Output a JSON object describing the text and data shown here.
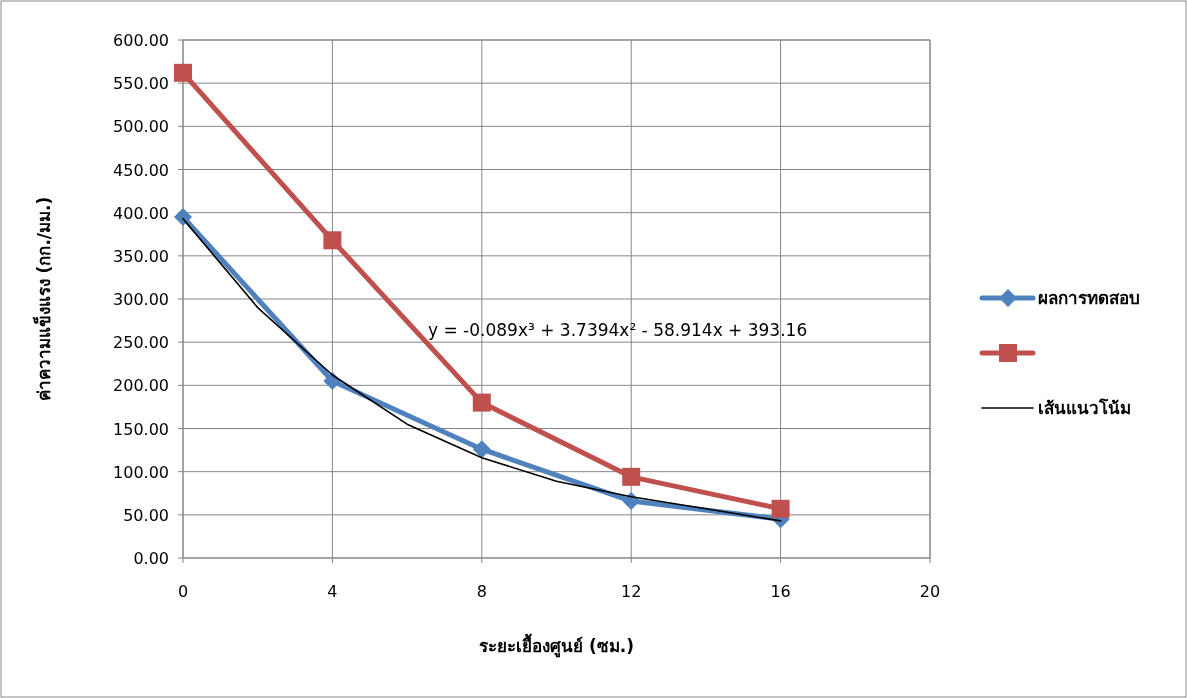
{
  "chart_data": {
    "type": "line",
    "xlabel": "ระยะเยื้องศูนย์ (ซม.)",
    "ylabel": "ค่าความแข็งแรง (กก./มม.)",
    "x": [
      0,
      4,
      8,
      12,
      16
    ],
    "series": [
      {
        "name": "ผลการทดสอบ",
        "color": "#4f81bd",
        "marker": "diamond",
        "values": [
          395,
          205,
          126,
          66,
          45
        ]
      },
      {
        "color": "#c0504d",
        "marker": "square",
        "values": [
          562,
          368,
          180,
          94,
          57
        ]
      },
      {
        "name": "เส้นแนวโน้ม",
        "color": "#000000",
        "marker": "none",
        "x": [
          0,
          2,
          4,
          6,
          8,
          10,
          12,
          14,
          16
        ],
        "values": [
          393,
          290,
          212,
          155,
          116,
          89,
          71,
          57,
          43
        ]
      }
    ],
    "xlim": [
      0,
      20
    ],
    "xticks": [
      0,
      4,
      8,
      12,
      16,
      20
    ],
    "ylim": [
      0,
      600
    ],
    "yticks": [
      {
        "value": 0,
        "label": "0.00"
      },
      {
        "value": 50,
        "label": "50.00"
      },
      {
        "value": 100,
        "label": "100.00"
      },
      {
        "value": 150,
        "label": "150.00"
      },
      {
        "value": 200,
        "label": "200.00"
      },
      {
        "value": 250,
        "label": "250.00"
      },
      {
        "value": 300,
        "label": "300.00"
      },
      {
        "value": 350,
        "label": "350.00"
      },
      {
        "value": 400,
        "label": "400.00"
      },
      {
        "value": 450,
        "label": "450.00"
      },
      {
        "value": 500,
        "label": "500.00"
      },
      {
        "value": 550,
        "label": "550.00"
      },
      {
        "value": 600,
        "label": "600.00"
      }
    ],
    "annotations": [
      "y = -0.089x³ + 3.7394x² - 58.914x + 393.16"
    ],
    "grid": true,
    "legend": "right",
    "line_style": "solid"
  }
}
